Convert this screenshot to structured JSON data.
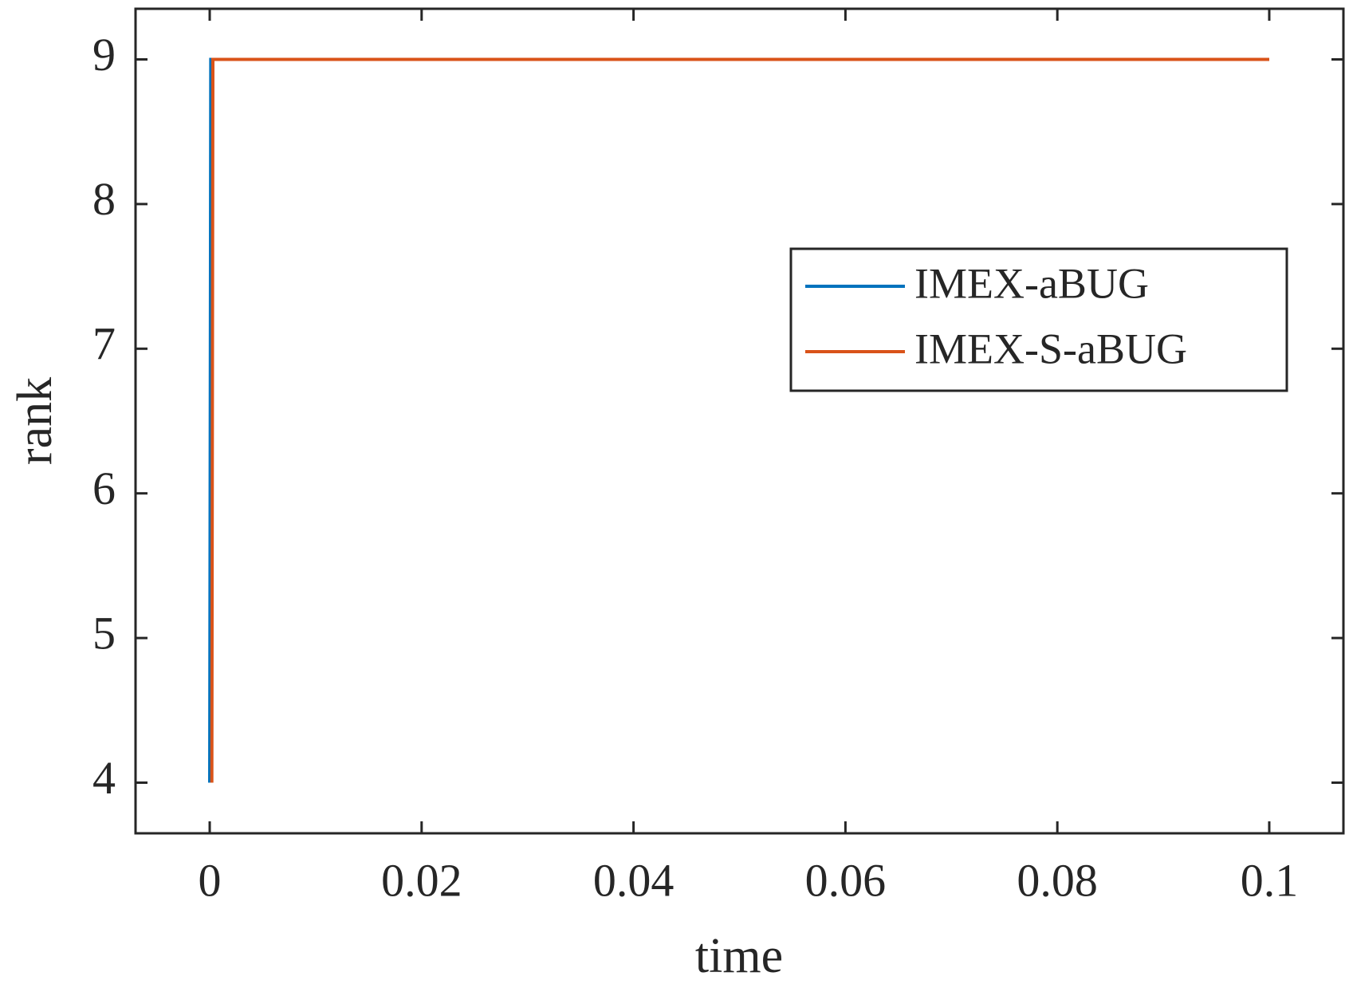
{
  "chart_data": {
    "type": "line",
    "xlabel": "time",
    "ylabel": "rank",
    "xlim": [
      -0.007,
      0.107
    ],
    "ylim": [
      3.65,
      9.35
    ],
    "xticks": [
      0,
      0.02,
      0.04,
      0.06,
      0.08,
      0.1
    ],
    "yticks": [
      4,
      5,
      6,
      7,
      8,
      9
    ],
    "legend": "upper right",
    "series": [
      {
        "name": "IMEX-aBUG",
        "color": "#0072BD",
        "x": [
          0,
          0.0001,
          0.1
        ],
        "values": [
          4,
          9,
          9
        ]
      },
      {
        "name": "IMEX-S-aBUG",
        "color": "#D95319",
        "x": [
          0.0002,
          0.0003,
          0.1
        ],
        "values": [
          4,
          9,
          9
        ]
      }
    ]
  }
}
